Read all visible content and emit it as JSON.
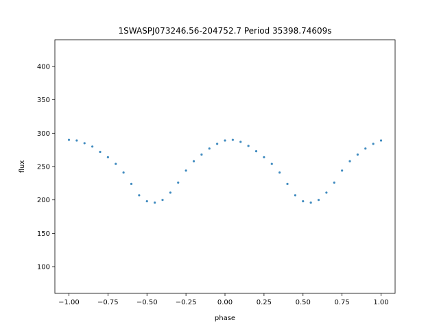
{
  "chart_data": {
    "type": "scatter",
    "title": "1SWASPJ073246.56-204752.7 Period 35398.74609s",
    "xlabel": "phase",
    "ylabel": "flux",
    "xlim": [
      -1.09,
      1.09
    ],
    "ylim": [
      60,
      440
    ],
    "x_ticks": [
      -1.0,
      -0.75,
      -0.5,
      -0.25,
      0.0,
      0.25,
      0.5,
      0.75,
      1.0
    ],
    "x_tick_labels": [
      "−1.00",
      "−0.75",
      "−0.50",
      "−0.25",
      "0.00",
      "0.25",
      "0.50",
      "0.75",
      "1.00"
    ],
    "y_ticks": [
      100,
      150,
      200,
      250,
      300,
      350,
      400
    ],
    "y_tick_labels": [
      "100",
      "150",
      "200",
      "250",
      "300",
      "350",
      "400"
    ],
    "grid": false,
    "marker_color": "#1f77b4",
    "series": [
      {
        "points": [
          [
            -1.0,
            290
          ],
          [
            -0.95,
            289
          ],
          [
            -0.9,
            285
          ],
          [
            -0.85,
            280
          ],
          [
            -0.8,
            272
          ],
          [
            -0.75,
            264
          ],
          [
            -0.7,
            254
          ],
          [
            -0.65,
            241
          ],
          [
            -0.6,
            224
          ],
          [
            -0.55,
            207
          ],
          [
            -0.5,
            198
          ],
          [
            -0.45,
            196
          ],
          [
            -0.4,
            200
          ],
          [
            -0.35,
            211
          ],
          [
            -0.3,
            226
          ],
          [
            -0.25,
            244
          ],
          [
            -0.2,
            258
          ],
          [
            -0.15,
            268
          ],
          [
            -0.1,
            277
          ],
          [
            -0.05,
            284
          ],
          [
            0.0,
            289
          ],
          [
            0.05,
            290
          ],
          [
            0.1,
            287
          ],
          [
            0.15,
            281
          ],
          [
            0.2,
            273
          ],
          [
            0.25,
            264
          ],
          [
            0.3,
            254
          ],
          [
            0.35,
            241
          ],
          [
            0.4,
            224
          ],
          [
            0.45,
            207
          ],
          [
            0.5,
            198
          ],
          [
            0.55,
            196
          ],
          [
            0.6,
            200
          ],
          [
            0.65,
            211
          ],
          [
            0.7,
            226
          ],
          [
            0.75,
            244
          ],
          [
            0.8,
            258
          ],
          [
            0.85,
            268
          ],
          [
            0.9,
            277
          ],
          [
            0.95,
            284
          ],
          [
            1.0,
            289
          ]
        ]
      }
    ]
  }
}
